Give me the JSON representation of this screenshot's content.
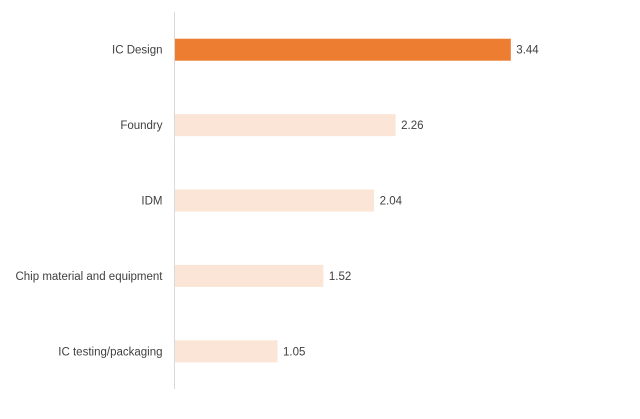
{
  "chart_data": {
    "type": "bar",
    "orientation": "horizontal",
    "categories": [
      "IC Design",
      "Foundry",
      "IDM",
      "Chip material and equipment",
      "IC testing/packaging"
    ],
    "values": [
      3.44,
      2.26,
      2.04,
      1.52,
      1.05
    ],
    "value_labels": [
      "3.44",
      "2.26",
      "2.04",
      "1.52",
      "1.05"
    ],
    "title": "",
    "xlabel": "",
    "ylabel": "",
    "xlim": [
      0,
      4.2
    ],
    "grid": false,
    "legend": "none",
    "colors": {
      "highlight": "#ED7D31",
      "default": "#FBE5D6",
      "axis": "#D9D9D9",
      "text": "#404040"
    },
    "highlight_index": 0
  }
}
